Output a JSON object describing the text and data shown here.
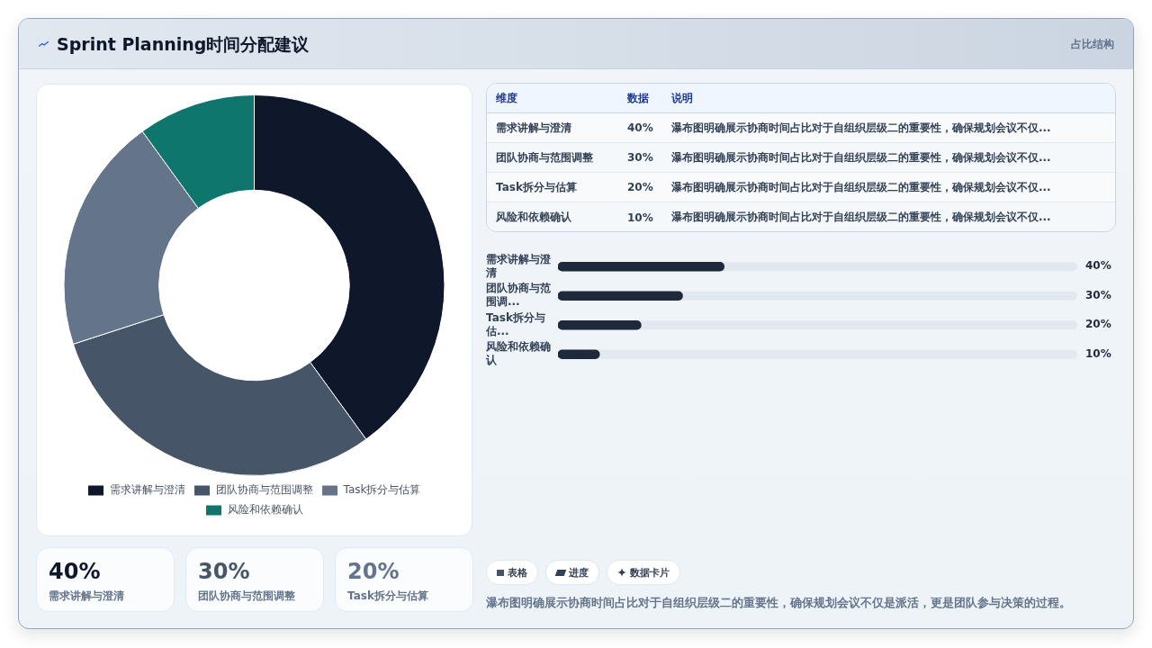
{
  "chart_data": [
    {
      "type": "donut",
      "title": "Sprint Planning时间分配建议",
      "categories": [
        "需求讲解与澄清",
        "团队协商与范围调整",
        "Task拆分与估算",
        "风险和依赖确认"
      ],
      "values": [
        40,
        30,
        20,
        10
      ],
      "colors": [
        "#0f172a",
        "#475569",
        "#64748b",
        "#0f766e"
      ],
      "legend": "bottom"
    },
    {
      "type": "bar",
      "title": "占比结构",
      "orientation": "horizontal",
      "categories": [
        "需求讲解与澄清",
        "团队协商与范围调...",
        "Task拆分与估...",
        "风险和依赖确认"
      ],
      "values": [
        40,
        30,
        20,
        10
      ],
      "value_labels": [
        "40%",
        "30%",
        "20%",
        "10%"
      ],
      "color": "#1e293b",
      "xlim": [
        0,
        125
      ],
      "tick_labels": "y",
      "annotations": [
        "维度",
        "数据",
        "说明",
        "需求讲解与澄清",
        "团队协商与范围调整",
        "Task拆分与估算",
        "风险和依赖确认",
        "瀑布图明确展示协商时间占比对于自组织层级二的重要性，确保规划会议不仅...",
        "瀑布图明确展示协商时间占比对于自组织层级二的重要性，确保规划会议不仅...",
        "瀑布图明确展示协商时间占比对于自组织层级二的重要性，确保规划会议不仅...",
        "瀑布图明确展示协商时间占比对于自组织层级二的重要性，确保规划会议不仅..."
      ]
    },
    {
      "type": "other",
      "categories": [
        "需求讲解与澄清",
        "团队协商与范围调整",
        "Task拆分与估算"
      ],
      "value_labels": [
        "40%",
        "30%",
        "20%"
      ]
    },
    {
      "type": "other",
      "annotations": [
        "表格",
        "进度",
        "数据卡片",
        "瀑布图明确展示协商时间占比对于自组织层级二的重要性，确保规划会议不仅是派活，更是团队参与决策的过程。"
      ]
    }
  ]
}
